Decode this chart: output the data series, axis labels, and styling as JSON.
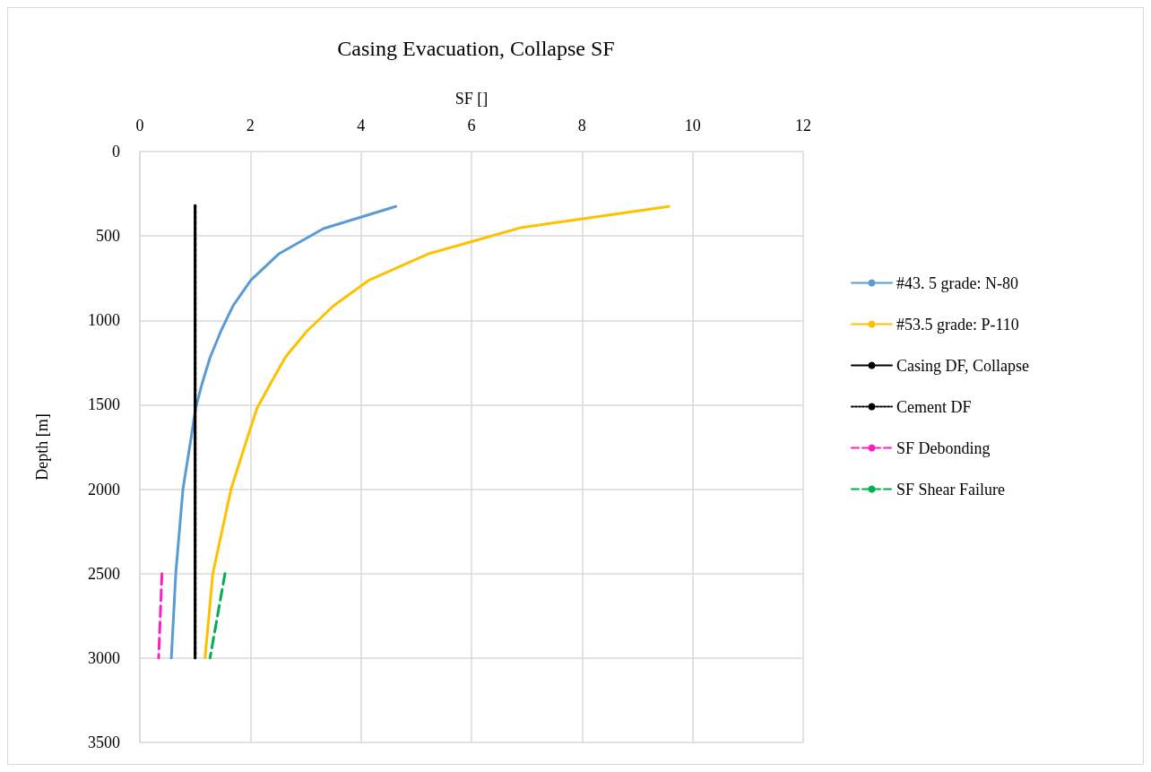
{
  "chart_data": {
    "type": "line",
    "title": "Casing Evacuation, Collapse SF",
    "xlabel": "SF []",
    "ylabel": "Depth [m]",
    "xlim": [
      0,
      12
    ],
    "xticks": [
      0,
      2,
      4,
      6,
      8,
      10,
      12
    ],
    "ylim": [
      3500,
      0
    ],
    "yticks": [
      0,
      500,
      1000,
      1500,
      2000,
      2500,
      3000,
      3500
    ],
    "grid": true,
    "legend": "right",
    "marker": "none",
    "series": [
      {
        "name": "#43. 5 grade: N-80",
        "color": "#5b9bd5",
        "line_style": "solid",
        "x": [
          4.63,
          3.32,
          2.51,
          2.01,
          1.69,
          1.47,
          1.27,
          1.13,
          1.01,
          0.93,
          0.78,
          0.65,
          0.57
        ],
        "values": [
          325,
          457,
          607,
          761,
          911,
          1061,
          1220,
          1370,
          1520,
          1690,
          2000,
          2500,
          3000
        ]
      },
      {
        "name": "#53.5 grade: P-110",
        "color": "#ffc000",
        "line_style": "solid",
        "x": [
          9.57,
          6.88,
          5.21,
          4.15,
          3.5,
          3.02,
          2.64,
          2.37,
          2.12,
          1.97,
          1.65,
          1.32,
          1.18
        ],
        "values": [
          325,
          452,
          607,
          761,
          915,
          1065,
          1215,
          1370,
          1520,
          1670,
          2000,
          2500,
          3000
        ]
      },
      {
        "name": "Casing DF, Collapse",
        "color": "#000000",
        "line_style": "solid",
        "x": [
          1,
          1
        ],
        "values": [
          320,
          3000
        ]
      },
      {
        "name": "Cement DF",
        "color": "#000000",
        "line_style": "dotted",
        "x": [
          1,
          1
        ],
        "values": [
          320,
          3000
        ]
      },
      {
        "name": "SF Debonding",
        "color": "#ff1fbf",
        "line_style": "dashed",
        "x": [
          0.4,
          0.34
        ],
        "values": [
          2500,
          3000
        ]
      },
      {
        "name": "SF Shear Failure",
        "color": "#00b050",
        "line_style": "dashed",
        "x": [
          1.54,
          1.27
        ],
        "values": [
          2500,
          3000
        ]
      }
    ]
  }
}
